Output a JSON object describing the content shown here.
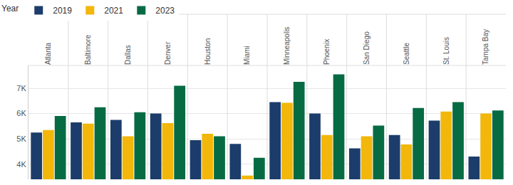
{
  "chart_data": {
    "type": "bar",
    "legend_title": "Year",
    "categories": [
      "Atlanta",
      "Baltimore",
      "Dallas",
      "Denver",
      "Houston",
      "Miami",
      "Minneapolis",
      "Phoenix",
      "San Diego",
      "Seattle",
      "St. Louis",
      "Tampa Bay"
    ],
    "series": [
      {
        "name": "2019",
        "color": "#1c3d6b",
        "values": [
          5250,
          5650,
          5750,
          6000,
          4950,
          4800,
          6450,
          6000,
          4620,
          5150,
          5720,
          4300
        ]
      },
      {
        "name": "2021",
        "color": "#f2b70a",
        "values": [
          5350,
          5600,
          5100,
          5620,
          5200,
          3550,
          6420,
          5150,
          5100,
          4780,
          6080,
          6000
        ]
      },
      {
        "name": "2023",
        "color": "#066b43",
        "values": [
          5900,
          6250,
          6050,
          7100,
          5100,
          4250,
          7250,
          7550,
          5520,
          6220,
          6450,
          6120
        ]
      }
    ],
    "ylim": [
      3400,
      7900
    ],
    "yticks": [
      {
        "value": 4000,
        "label": "4K"
      },
      {
        "value": 5000,
        "label": "5K"
      },
      {
        "value": 6000,
        "label": "6K"
      },
      {
        "value": 7000,
        "label": "7K"
      }
    ],
    "grid": true,
    "legend": "top left"
  }
}
